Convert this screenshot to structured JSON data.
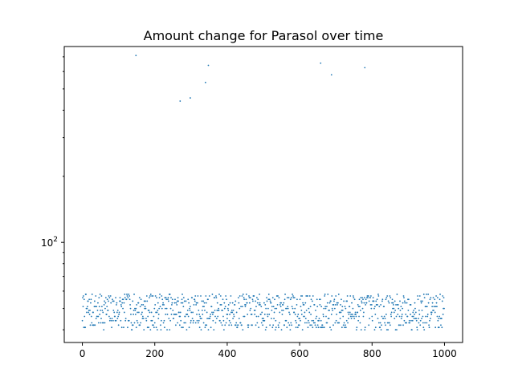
{
  "chart_data": {
    "type": "scatter",
    "title": "Amount change for Parasol over time",
    "xlabel": "",
    "ylabel": "",
    "xlim": [
      -50,
      1050
    ],
    "ylim": [
      35,
      780
    ],
    "yscale": "log",
    "x_ticks": [
      0,
      200,
      400,
      600,
      800,
      1000
    ],
    "x_tick_labels": [
      "0",
      "200",
      "400",
      "600",
      "800",
      "1000"
    ],
    "y_ticks": [
      100
    ],
    "y_tick_labels": [
      "10",
      "2"
    ],
    "grid": false,
    "legend": "none",
    "marker_color": "#1f77b4",
    "outliers": [
      {
        "x": 148,
        "y": 710
      },
      {
        "x": 270,
        "y": 440
      },
      {
        "x": 298,
        "y": 455
      },
      {
        "x": 340,
        "y": 535
      },
      {
        "x": 348,
        "y": 640
      },
      {
        "x": 658,
        "y": 655
      },
      {
        "x": 688,
        "y": 580
      },
      {
        "x": 780,
        "y": 625
      }
    ],
    "bulk_series": {
      "x_range": [
        0,
        999
      ],
      "y_min": 40,
      "y_max": 58,
      "count": 1000,
      "seed": 7
    }
  }
}
